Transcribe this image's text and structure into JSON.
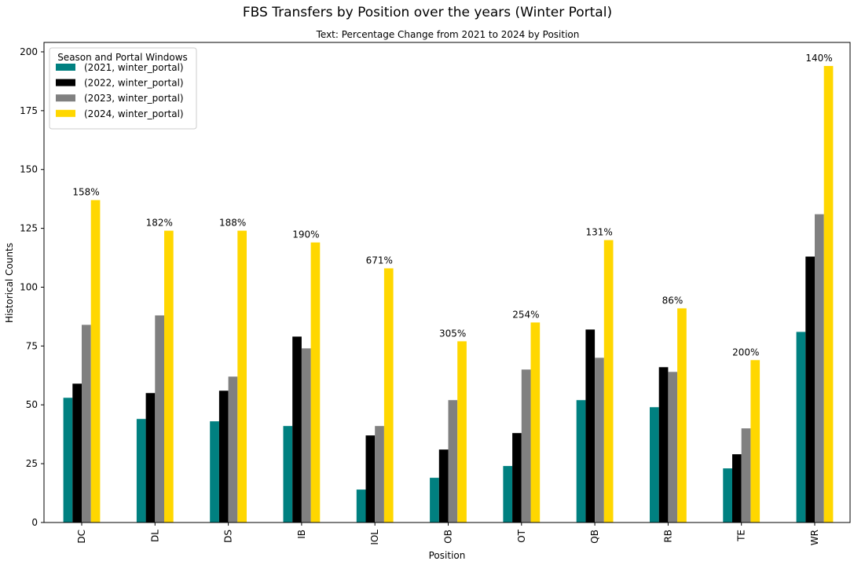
{
  "chart_data": {
    "type": "bar",
    "title": "FBS Transfers by Position over the years (Winter Portal)",
    "subtitle": "Text: Percentage Change from 2021 to 2024 by Position",
    "xlabel": "Position",
    "ylabel": "Historical Counts",
    "ylim": [
      0,
      204
    ],
    "yticks": [
      0,
      25,
      50,
      75,
      100,
      125,
      150,
      175,
      200
    ],
    "categories": [
      "DC",
      "DL",
      "DS",
      "IB",
      "IOL",
      "OB",
      "OT",
      "QB",
      "RB",
      "TE",
      "WR"
    ],
    "series": [
      {
        "name": "(2021, winter_portal)",
        "color": "#008080",
        "values": [
          53,
          44,
          43,
          41,
          14,
          19,
          24,
          52,
          49,
          23,
          81
        ]
      },
      {
        "name": "(2022, winter_portal)",
        "color": "#000000",
        "values": [
          59,
          55,
          56,
          79,
          37,
          31,
          38,
          82,
          66,
          29,
          113
        ]
      },
      {
        "name": "(2023, winter_portal)",
        "color": "#808080",
        "values": [
          84,
          88,
          62,
          74,
          41,
          52,
          65,
          70,
          64,
          40,
          131
        ]
      },
      {
        "name": "(2024, winter_portal)",
        "color": "#FFD700",
        "values": [
          137,
          124,
          124,
          119,
          108,
          77,
          85,
          120,
          91,
          69,
          194
        ]
      }
    ],
    "annotations": [
      "158%",
      "182%",
      "188%",
      "190%",
      "671%",
      "305%",
      "254%",
      "131%",
      "86%",
      "200%",
      "140%"
    ],
    "legend": {
      "title": "Season and Portal Windows",
      "placement": "upper-left"
    },
    "grid": false
  }
}
